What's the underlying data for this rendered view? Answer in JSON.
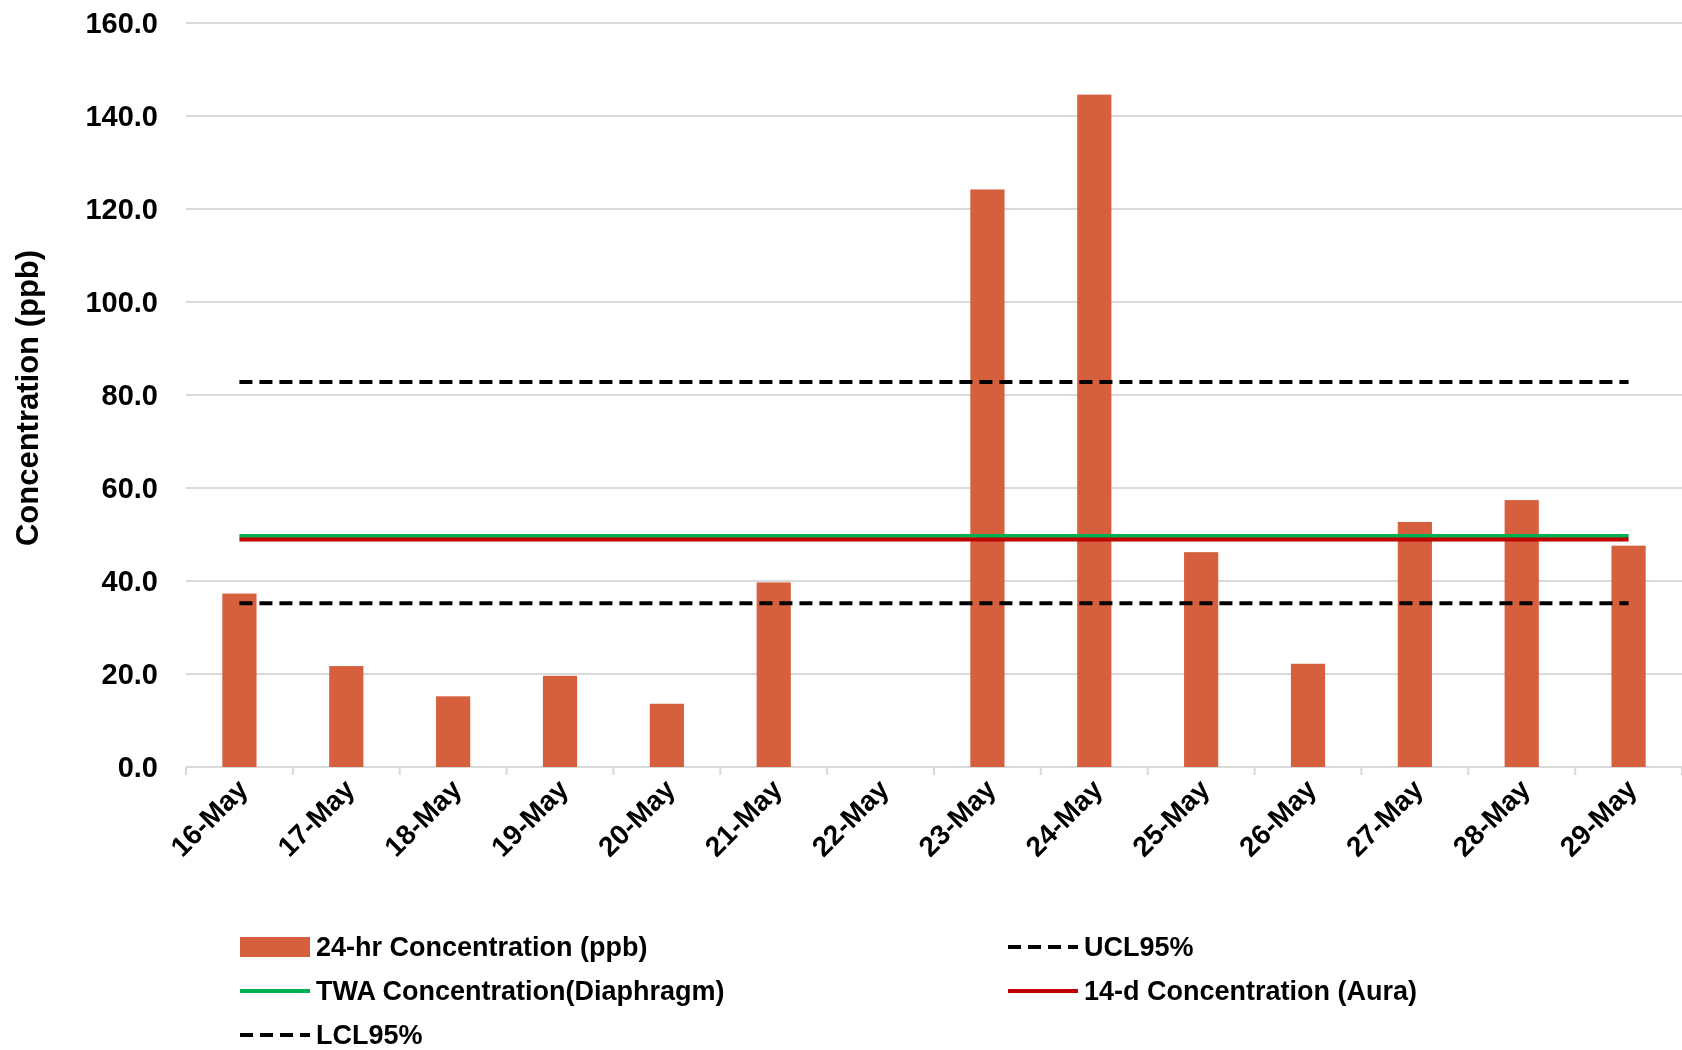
{
  "chart_data": {
    "type": "bar",
    "ylabel": "Concentration (ppb)",
    "categories": [
      "16-May",
      "17-May",
      "18-May",
      "19-May",
      "20-May",
      "21-May",
      "22-May",
      "23-May",
      "24-May",
      "25-May",
      "26-May",
      "27-May",
      "28-May",
      "29-May"
    ],
    "series": [
      {
        "name": "24-hr Concentration (ppb)",
        "color": "#d65f3e",
        "values": [
          37.3,
          21.7,
          15.2,
          19.6,
          13.6,
          39.7,
          null,
          124.2,
          144.6,
          46.2,
          22.2,
          52.7,
          57.4,
          47.6
        ]
      },
      {
        "name": "UCL95%",
        "type": "line",
        "color": "#000000",
        "line_style": "dashed",
        "values": [
          82.8,
          82.8,
          82.8,
          82.8,
          82.8,
          82.8,
          82.8,
          82.8,
          82.8,
          82.8,
          82.8,
          82.8,
          82.8,
          82.8
        ]
      },
      {
        "name": "TWA Concentration(Diaphragm)",
        "type": "line",
        "color": "#00b050",
        "values": [
          49.7,
          49.7,
          49.7,
          49.7,
          49.7,
          49.7,
          49.7,
          49.7,
          49.7,
          49.7,
          49.7,
          49.7,
          49.7,
          49.7
        ]
      },
      {
        "name": "14-d Concentration (Aura)",
        "type": "line",
        "color": "#c00000",
        "values": [
          48.9,
          48.9,
          48.9,
          48.9,
          48.9,
          48.9,
          48.9,
          48.9,
          48.9,
          48.9,
          48.9,
          48.9,
          48.9,
          48.9
        ]
      },
      {
        "name": "LCL95%",
        "type": "line",
        "color": "#000000",
        "line_style": "dashed",
        "values": [
          35.2,
          35.2,
          35.2,
          35.2,
          35.2,
          35.2,
          35.2,
          35.2,
          35.2,
          35.2,
          35.2,
          35.2,
          35.2,
          35.2
        ]
      }
    ],
    "ylim": [
      0,
      160
    ],
    "yticks": [
      {
        "value": 0,
        "label": "0.0"
      },
      {
        "value": 20,
        "label": "20.0"
      },
      {
        "value": 40,
        "label": "40.0"
      },
      {
        "value": 60,
        "label": "60.0"
      },
      {
        "value": 80,
        "label": "80.0"
      },
      {
        "value": 100,
        "label": "100.0"
      },
      {
        "value": 120,
        "label": "120.0"
      },
      {
        "value": 140,
        "label": "140.0"
      },
      {
        "value": 160,
        "label": "160.0"
      }
    ],
    "grid": "y",
    "legend": "bottom"
  }
}
